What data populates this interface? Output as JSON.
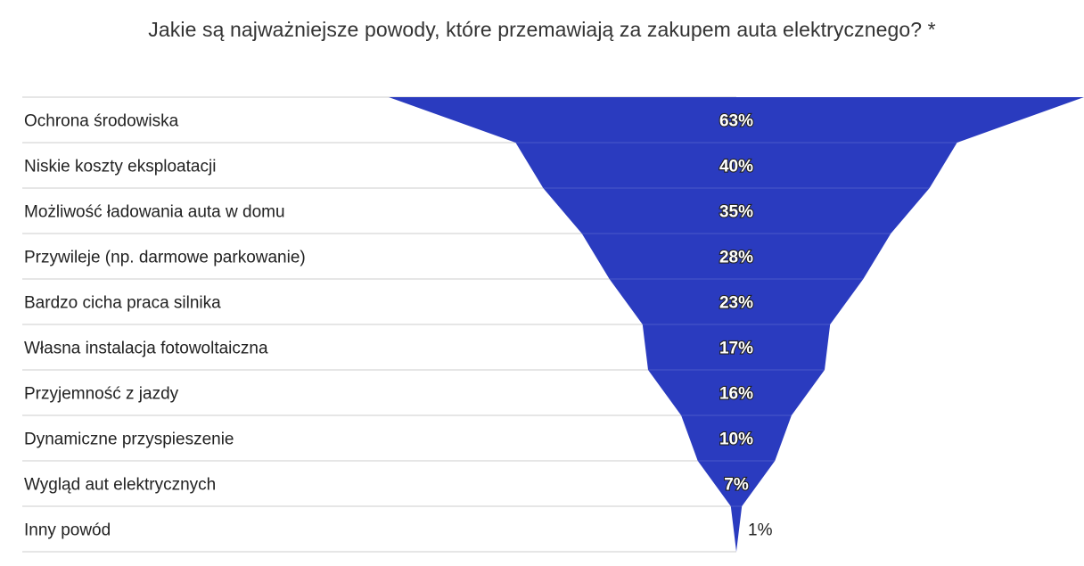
{
  "chart_data": {
    "type": "funnel",
    "title": "Jakie są najważniejsze powody, które przemawiają za zakupem auta elektrycznego? *",
    "unit": "%",
    "categories": [
      "Ochrona środowiska",
      "Niskie koszty eksploatacji",
      "Możliwość ładowania auta w domu",
      "Przywileje (np. darmowe parkowanie)",
      "Bardzo cicha praca silnika",
      "Własna instalacja fotowoltaiczna",
      "Przyjemność z jazdy",
      "Dynamiczne przyspieszenie",
      "Wygląd aut elektrycznych",
      "Inny powód"
    ],
    "values": [
      63,
      40,
      35,
      28,
      23,
      17,
      16,
      10,
      7,
      1
    ],
    "value_labels": [
      "63%",
      "40%",
      "35%",
      "28%",
      "23%",
      "17%",
      "16%",
      "10%",
      "7%",
      "1%"
    ],
    "colors": {
      "fill": "#2a3bbf",
      "grid": "#cccccc"
    }
  }
}
